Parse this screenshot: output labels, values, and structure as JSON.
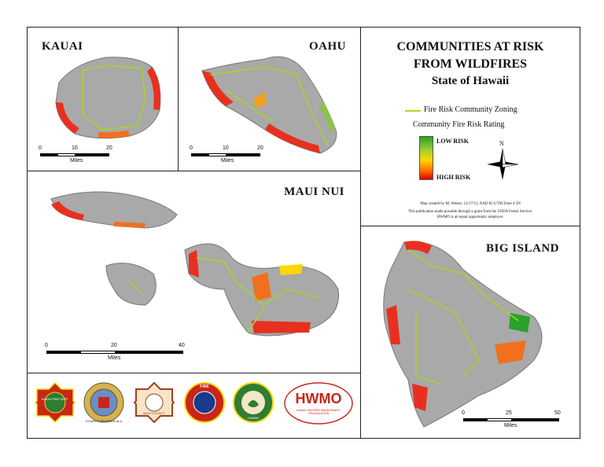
{
  "panels": {
    "kauai": {
      "label": "KAUAI",
      "scale": {
        "ticks": [
          "0",
          "10",
          "20"
        ],
        "units": "Miles"
      }
    },
    "oahu": {
      "label": "OAHU",
      "scale": {
        "ticks": [
          "0",
          "10",
          "20"
        ],
        "units": "Miles"
      }
    },
    "maui_nui": {
      "label": "MAUI NUI",
      "scale": {
        "ticks": [
          "0",
          "20",
          "40"
        ],
        "units": "Miles"
      }
    },
    "big_island": {
      "label": "BIG ISLAND",
      "scale": {
        "ticks": [
          "0",
          "25",
          "50"
        ],
        "units": "Miles"
      }
    }
  },
  "title": {
    "line1": "COMMUNITIES AT RISK",
    "line2": "FROM WILDFIRES",
    "line3": "State of Hawaii"
  },
  "legend": {
    "zoning_label": "Fire Risk Community Zoning",
    "rating_label": "Community Fire Risk Rating",
    "low_label": "LOW RISK",
    "high_label": "HIGH RISK",
    "north_label": "N",
    "zoning_color": "#a8d820"
  },
  "credits": {
    "line1": "Map created by M. Weiser, 12/17/13, NAD 83 UTM Zone 4 5N",
    "line2": "This publication made possible through a grant from the USDA Forest Service.",
    "line3": "HWMO is an equal opportunity employer."
  },
  "logos": {
    "kauai_fire": "KAUAI FIRE DEPT",
    "honolulu": "COUNTY OF HONOLULU",
    "maui": "MAUI COUNTY",
    "hawaii_fire": "FIRE",
    "dlnr": "HAWAII",
    "hwmo_main": "HWMO",
    "hwmo_sub": "HAWAII WILDFIRE MANAGEMENT ORGANIZATION"
  }
}
